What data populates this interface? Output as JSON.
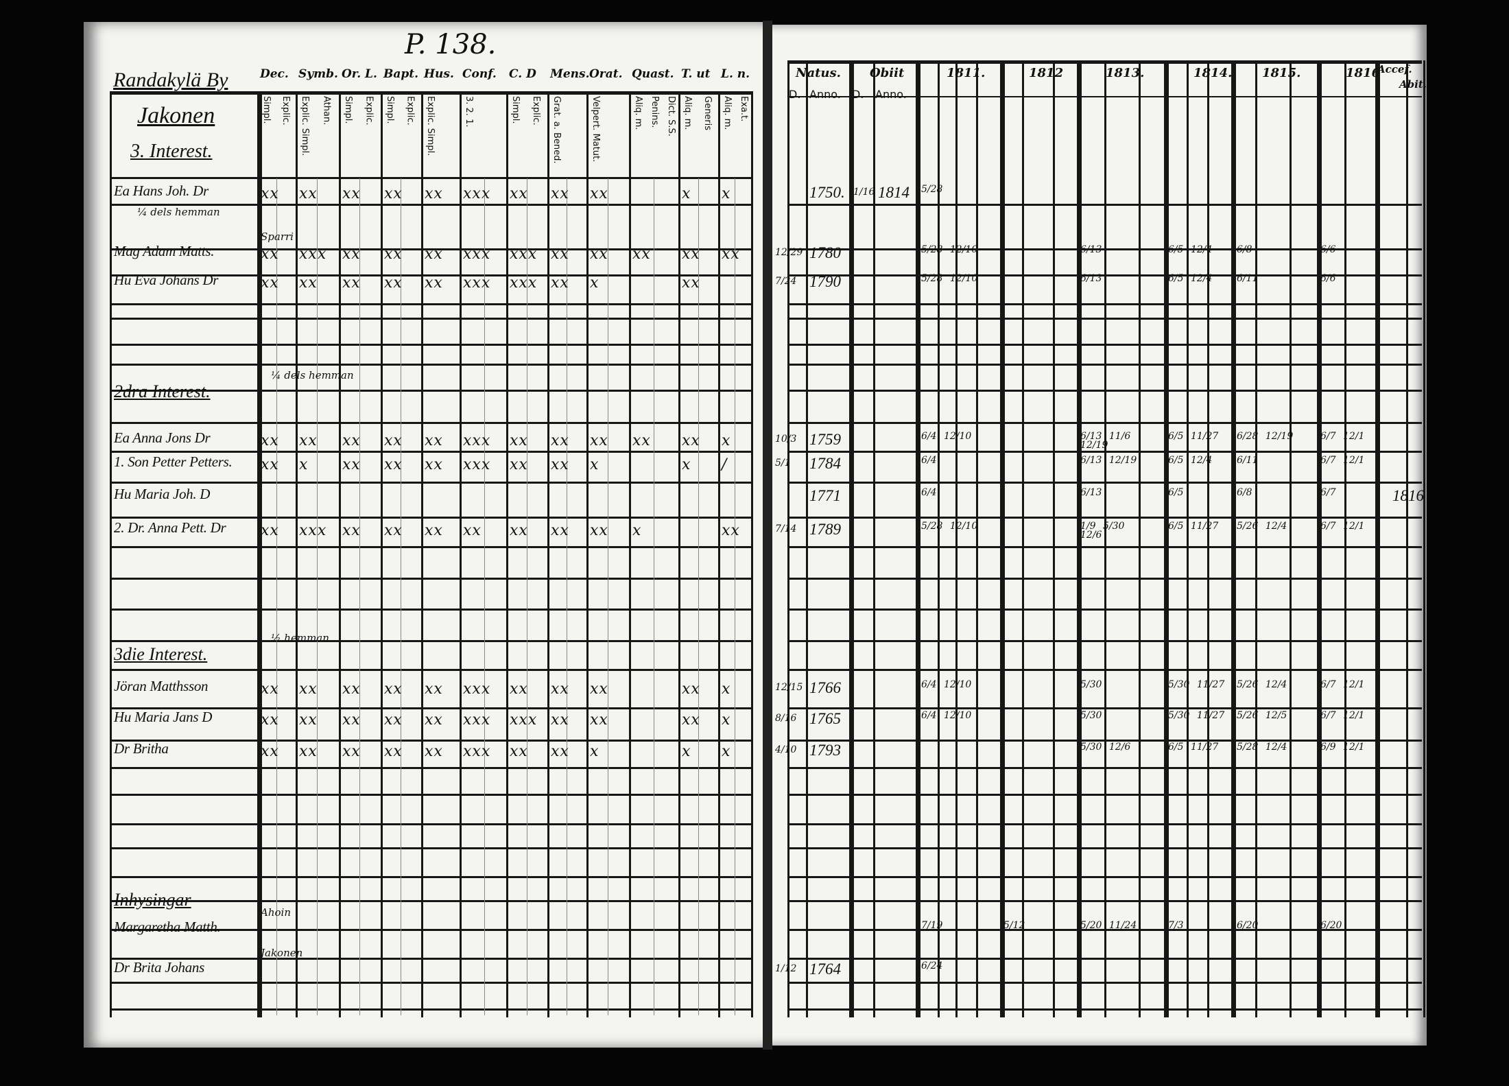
{
  "page_number": "P. 138.",
  "left": {
    "village": "Randakylä By",
    "farm": "Jakonen",
    "interest": "3. Interest.",
    "columns": [
      {
        "label": "Dec.",
        "sub": [
          "Simpl.",
          "Explic."
        ]
      },
      {
        "label": "Symb.",
        "sub": [
          "Explic. Simpl.",
          "Athan."
        ]
      },
      {
        "label": "Or. L.",
        "sub": [
          "Simpl.",
          "Explic."
        ]
      },
      {
        "label": "Bapt.",
        "sub": [
          "Simpl.",
          "Explic."
        ]
      },
      {
        "label": "Hus.",
        "sub": [
          "Explic. Simpl."
        ]
      },
      {
        "label": "Conf.",
        "sub": [
          "3. 2. 1."
        ]
      },
      {
        "label": "C. D",
        "sub": [
          "Simpl.",
          "Explic."
        ]
      },
      {
        "label": "Mens.",
        "sub": [
          "Grat. a. Bened."
        ]
      },
      {
        "label": "Orat.",
        "sub": [
          "Velpert. Matut."
        ]
      },
      {
        "label": "Quast.",
        "sub": [
          "Aliq. m.",
          "Penins.",
          "Dict. S.S."
        ]
      },
      {
        "label": "T. ut",
        "sub": [
          "Aliq. m.",
          "Generis"
        ]
      },
      {
        "label": "L. n.",
        "sub": [
          "Aliq. m.",
          "Exa.t."
        ]
      }
    ]
  },
  "right": {
    "columns": {
      "natus": "Natus.",
      "obiit": "Obiit",
      "d": "D.",
      "anno": "Anno.",
      "years": [
        "1811.",
        "1812",
        "1813.",
        "1814.",
        "1815.",
        "1816"
      ],
      "accef": "Accef.",
      "abit": "Abit."
    }
  },
  "rows": [
    {
      "name": "Ea Hans Joh. Dr",
      "marks": [
        "xx",
        "xx",
        "xx",
        "xx",
        "xx",
        "xxx",
        "xx",
        "xx",
        "xx",
        "",
        "x",
        "x"
      ],
      "natus_d": "",
      "natus_anno": "1750.",
      "obiit_d": "1/16",
      "obiit_anno": "1814",
      "years": [
        "5/28",
        "",
        "",
        "",
        "",
        ""
      ],
      "abit": ""
    },
    {
      "name": "",
      "note": "¼ dels hemman"
    },
    {
      "name": "Mag Adam Matts.",
      "note": "Sparri",
      "marks": [
        "xx",
        "xxx",
        "xx",
        "xx",
        "xx",
        "xxx",
        "xxx",
        "xx",
        "xx",
        "xx",
        "xx",
        "xx"
      ],
      "natus_d": "12/29",
      "natus_anno": "1780",
      "years": [
        "5/28 12/10",
        "",
        "6/13",
        "6/5 12/4",
        "6/8",
        "6/6"
      ]
    },
    {
      "name": "Hu Eva Johans Dr",
      "marks": [
        "xx",
        "xx",
        "xx",
        "xx",
        "xx",
        "xxx",
        "xxx",
        "xx",
        "x",
        "",
        "xx",
        ""
      ],
      "natus_d": "7/24",
      "natus_anno": "1790",
      "years": [
        "5/28 12/10",
        "",
        "6/13",
        "6/5 12/4",
        "6/11",
        "6/6"
      ]
    },
    {
      "name": "2dra Interest.",
      "note": "¼ dels hemman",
      "heading": true
    },
    {
      "name": "Ea Anna Jons Dr",
      "marks": [
        "xx",
        "xx",
        "xx",
        "xx",
        "xx",
        "xxx",
        "xx",
        "xx",
        "xx",
        "xx",
        "xx",
        "x"
      ],
      "natus_d": "10/3",
      "natus_anno": "1759",
      "years": [
        "6/4 12/10",
        "",
        "6/13 11/6 12/19",
        "6/5 11/27",
        "6/28 12/19",
        "6/7 12/1"
      ]
    },
    {
      "name": "1. Son Petter Petters.",
      "marks": [
        "xx",
        "x",
        "xx",
        "xx",
        "xx",
        "xxx",
        "xx",
        "xx",
        "x",
        "",
        "x",
        "/"
      ],
      "natus_d": "5/1",
      "natus_anno": "1784",
      "years": [
        "6/4",
        "",
        "6/13 12/19",
        "6/5 12/4",
        "6/11",
        "6/7 12/1"
      ]
    },
    {
      "name": "Hu Maria Joh. D",
      "marks": [
        "",
        "",
        "",
        "",
        "",
        "",
        "",
        "",
        "",
        "",
        "",
        ""
      ],
      "natus_d": "",
      "natus_anno": "1771",
      "years": [
        "6/4",
        "",
        "6/13",
        "6/5",
        "6/8",
        "6/7"
      ],
      "abit": "1816"
    },
    {
      "name": "2. Dr. Anna Pett. Dr",
      "marks": [
        "xx",
        "xxx",
        "xx",
        "xx",
        "xx",
        "xx",
        "xx",
        "xx",
        "xx",
        "x",
        "",
        "xx"
      ],
      "natus_d": "7/14",
      "natus_anno": "1789",
      "years": [
        "5/28 12/10",
        "",
        "1/9 5/30 12/6",
        "6/5 11/27",
        "5/26 12/4",
        "6/7 12/1"
      ]
    },
    {
      "name": "3die Interest.",
      "note": "½ hemman",
      "heading": true
    },
    {
      "name": "Jöran Matthsson",
      "marks": [
        "xx",
        "xx",
        "xx",
        "xx",
        "xx",
        "xxx",
        "xx",
        "xx",
        "xx",
        "",
        "xx",
        "x"
      ],
      "natus_d": "12/15",
      "natus_anno": "1766",
      "years": [
        "6/4 12/10",
        "",
        "5/30",
        "5/30 11/27",
        "5/26 12/4",
        "6/7 12/1"
      ]
    },
    {
      "name": "Hu Maria Jans D",
      "marks": [
        "xx",
        "xx",
        "xx",
        "xx",
        "xx",
        "xxx",
        "xxx",
        "xx",
        "xx",
        "",
        "xx",
        "x"
      ],
      "natus_d": "8/16",
      "natus_anno": "1765",
      "years": [
        "6/4 12/10",
        "",
        "5/30",
        "5/30 11/27",
        "5/26 12/5",
        "6/7 12/1"
      ]
    },
    {
      "name": "Dr Britha",
      "marks": [
        "xx",
        "xx",
        "xx",
        "xx",
        "xx",
        "xxx",
        "xx",
        "xx",
        "x",
        "",
        "x",
        "x"
      ],
      "natus_d": "4/10",
      "natus_anno": "1793",
      "years": [
        "",
        "",
        "5/30 12/6",
        "6/5 11/27",
        "5/28 12/4",
        "6/9 12/1"
      ]
    },
    {
      "name": "Inhysingar",
      "heading": true
    },
    {
      "name": "Margaretha Matth.",
      "note": "Ahoin",
      "years": [
        "7/19",
        "5/12",
        "5/20 11/24",
        "7/3",
        "6/20",
        "6/20"
      ]
    },
    {
      "name": "Dr Brita Johans",
      "note": "Jakonen",
      "natus_d": "1/12",
      "natus_anno": "1764",
      "years": [
        "6/24",
        "",
        "",
        "",
        "",
        ""
      ]
    }
  ],
  "colors": {
    "ink": "#161616",
    "paper": "#f4f4f1",
    "background": "#050505"
  }
}
